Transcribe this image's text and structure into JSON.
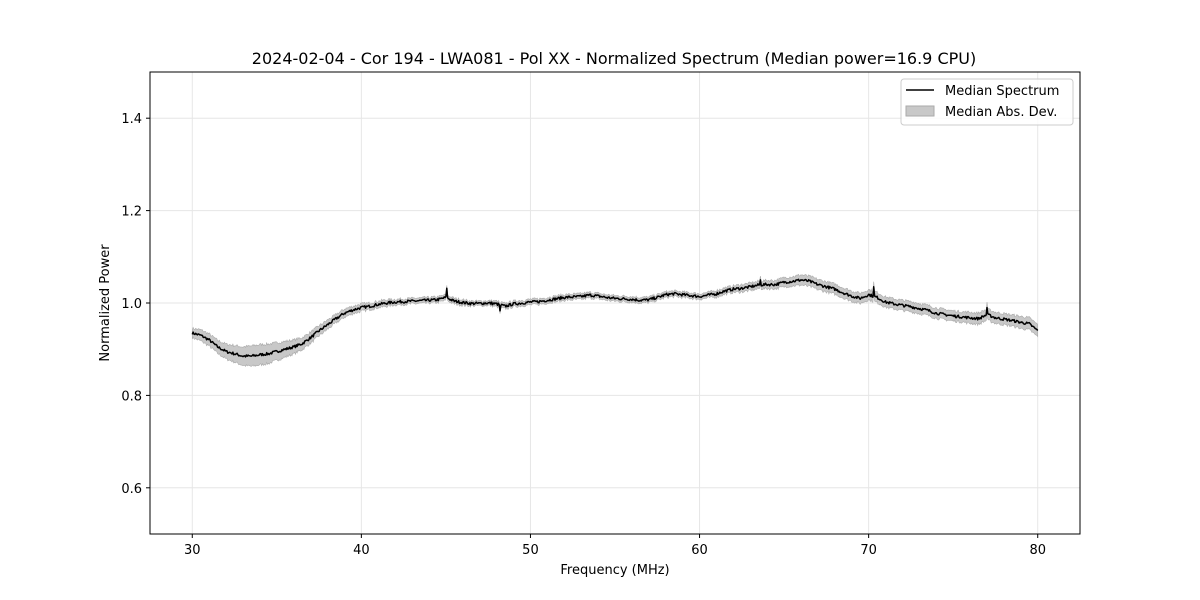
{
  "chart_data": {
    "type": "line",
    "title": "2024-02-04 - Cor 194 - LWA081 - Pol XX - Normalized Spectrum (Median power=16.9 CPU)",
    "xlabel": "Frequency (MHz)",
    "ylabel": "Normalized Power",
    "xlim": [
      27.5,
      82.5
    ],
    "ylim": [
      0.5,
      1.5
    ],
    "xticks": [
      30,
      40,
      50,
      60,
      70,
      80
    ],
    "yticks": [
      0.6,
      0.8,
      1.0,
      1.2,
      1.4
    ],
    "xtick_labels": [
      "30",
      "40",
      "50",
      "60",
      "70",
      "80"
    ],
    "ytick_labels": [
      "0.6",
      "0.8",
      "1.0",
      "1.2",
      "1.4"
    ],
    "grid": true,
    "legend_position": "top-right",
    "series": [
      {
        "name": "Median Spectrum",
        "color": "#000000",
        "kind": "line",
        "x": [
          30,
          30.5,
          31,
          31.5,
          32,
          32.5,
          33,
          33.5,
          34,
          34.5,
          35,
          35.5,
          36,
          36.5,
          37,
          37.5,
          38,
          38.5,
          39,
          39.5,
          40,
          40.5,
          41,
          41.5,
          42,
          42.5,
          43,
          43.5,
          44,
          44.5,
          45,
          45.5,
          46,
          46.5,
          47,
          47.5,
          48,
          48.5,
          49,
          49.5,
          50,
          50.5,
          51,
          51.5,
          52,
          52.5,
          53,
          53.5,
          54,
          54.5,
          55,
          55.5,
          56,
          56.5,
          57,
          57.5,
          58,
          58.5,
          59,
          59.5,
          60,
          60.5,
          61,
          61.5,
          62,
          62.5,
          63,
          63.5,
          64,
          64.5,
          65,
          65.5,
          66,
          66.5,
          67,
          67.5,
          68,
          68.5,
          69,
          69.5,
          70,
          70.5,
          71,
          71.5,
          72,
          72.5,
          73,
          73.5,
          74,
          74.5,
          75,
          75.5,
          76,
          76.5,
          77,
          77.5,
          78,
          78.5,
          79,
          79.5,
          80
        ],
        "y": [
          0.935,
          0.93,
          0.92,
          0.905,
          0.895,
          0.89,
          0.885,
          0.885,
          0.888,
          0.89,
          0.895,
          0.9,
          0.905,
          0.912,
          0.925,
          0.94,
          0.953,
          0.966,
          0.978,
          0.985,
          0.99,
          0.993,
          0.997,
          1.0,
          1.002,
          1.003,
          1.004,
          1.005,
          1.006,
          1.007,
          1.012,
          1.004,
          1.001,
          0.999,
          0.999,
          1.0,
          0.998,
          0.993,
          0.998,
          1.0,
          1.002,
          1.003,
          1.006,
          1.009,
          1.012,
          1.013,
          1.014,
          1.017,
          1.015,
          1.012,
          1.01,
          1.009,
          1.008,
          1.006,
          1.007,
          1.012,
          1.018,
          1.02,
          1.018,
          1.016,
          1.014,
          1.017,
          1.02,
          1.026,
          1.03,
          1.032,
          1.035,
          1.039,
          1.04,
          1.04,
          1.045,
          1.047,
          1.05,
          1.047,
          1.04,
          1.035,
          1.03,
          1.022,
          1.015,
          1.01,
          1.018,
          1.012,
          1.002,
          0.998,
          0.995,
          0.992,
          0.988,
          0.984,
          0.978,
          0.975,
          0.972,
          0.97,
          0.968,
          0.966,
          0.975,
          0.968,
          0.965,
          0.962,
          0.958,
          0.955,
          0.94
        ],
        "spikes": [
          [
            45.05,
            1.032
          ],
          [
            70.3,
            1.035
          ],
          [
            77.0,
            0.99
          ],
          [
            63.6,
            1.05
          ],
          [
            48.2,
            0.983
          ]
        ]
      },
      {
        "name": "Median Abs. Dev.",
        "color": "#c8c8c8",
        "edge": "#aaaaaa",
        "kind": "band",
        "half_width": [
          0.01,
          0.012,
          0.013,
          0.014,
          0.016,
          0.018,
          0.02,
          0.022,
          0.022,
          0.021,
          0.019,
          0.017,
          0.015,
          0.013,
          0.012,
          0.011,
          0.01,
          0.009,
          0.009,
          0.008,
          0.008,
          0.007,
          0.007,
          0.007,
          0.006,
          0.006,
          0.006,
          0.006,
          0.006,
          0.006,
          0.006,
          0.006,
          0.006,
          0.005,
          0.005,
          0.005,
          0.006,
          0.006,
          0.006,
          0.006,
          0.006,
          0.006,
          0.006,
          0.006,
          0.006,
          0.006,
          0.006,
          0.006,
          0.006,
          0.006,
          0.006,
          0.006,
          0.006,
          0.006,
          0.006,
          0.006,
          0.006,
          0.006,
          0.006,
          0.006,
          0.006,
          0.006,
          0.007,
          0.007,
          0.007,
          0.008,
          0.008,
          0.008,
          0.009,
          0.009,
          0.01,
          0.01,
          0.011,
          0.011,
          0.011,
          0.011,
          0.011,
          0.011,
          0.011,
          0.011,
          0.011,
          0.011,
          0.011,
          0.011,
          0.011,
          0.011,
          0.011,
          0.011,
          0.011,
          0.011,
          0.011,
          0.011,
          0.012,
          0.012,
          0.012,
          0.012,
          0.012,
          0.012,
          0.013,
          0.013,
          0.013
        ]
      }
    ]
  }
}
